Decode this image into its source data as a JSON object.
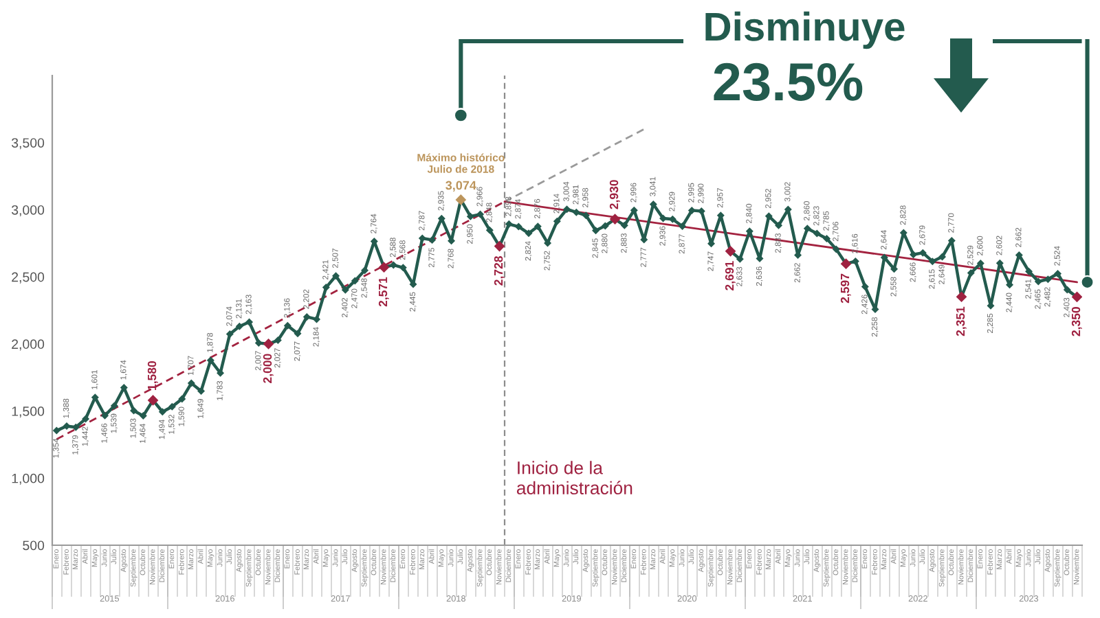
{
  "chart_data": {
    "type": "line",
    "title": "Disminuye",
    "subtitle": "23.5%",
    "x": [
      "2015-01-15",
      "2015-02-15",
      "2015-03-15",
      "2015-04-15",
      "2015-05-15",
      "2015-06-15",
      "2015-07-15",
      "2015-08-15",
      "2015-09-15",
      "2015-10-15",
      "2015-11-15",
      "2015-12-15",
      "2016-01-15",
      "2016-02-15",
      "2016-03-15",
      "2016-04-15",
      "2016-05-15",
      "2016-06-15",
      "2016-07-15",
      "2016-08-15",
      "2016-09-15",
      "2016-10-15",
      "2016-11-15",
      "2016-12-15",
      "2017-01-15",
      "2017-02-15",
      "2017-03-15",
      "2017-04-15",
      "2017-05-15",
      "2017-06-15",
      "2017-07-15",
      "2017-08-15",
      "2017-09-15",
      "2017-10-15",
      "2017-11-15",
      "2017-12-15",
      "2018-01-15",
      "2018-02-15",
      "2018-03-15",
      "2018-04-15",
      "2018-05-15",
      "2018-06-15",
      "2018-07-15",
      "2018-08-15",
      "2018-09-15",
      "2018-10-15",
      "2018-11-15",
      "2018-12-15",
      "2019-01-15",
      "2019-02-15",
      "2019-03-15",
      "2019-04-15",
      "2019-05-15",
      "2019-06-15",
      "2019-07-15",
      "2019-08-15",
      "2019-09-15",
      "2019-10-15",
      "2019-11-15",
      "2019-12-15",
      "2020-01-15",
      "2020-02-15",
      "2020-03-15",
      "2020-04-15",
      "2020-05-15",
      "2020-06-15",
      "2020-07-15",
      "2020-08-15",
      "2020-09-15",
      "2020-10-15",
      "2020-11-15",
      "2020-12-15",
      "2021-01-15",
      "2021-02-15",
      "2021-03-15",
      "2021-04-15",
      "2021-05-15",
      "2021-06-15",
      "2021-07-15",
      "2021-08-15",
      "2021-09-15",
      "2021-10-15",
      "2021-11-15",
      "2021-12-15",
      "2022-01-15",
      "2022-02-15",
      "2022-03-15",
      "2022-04-15",
      "2022-05-15",
      "2022-06-15",
      "2022-07-15",
      "2022-08-15",
      "2022-09-15",
      "2022-10-15",
      "2022-11-15",
      "2022-12-15",
      "2023-01-15",
      "2023-02-15",
      "2023-03-15",
      "2023-04-15",
      "2023-05-15",
      "2023-06-15",
      "2023-07-15",
      "2023-08-15",
      "2023-09-15",
      "2023-10-15",
      "2023-11-15"
    ],
    "xlim": [
      "2015-01-01",
      "2023-12-01"
    ],
    "xticks": [
      {
        "value": "2015-01-15",
        "label": "Enero"
      },
      {
        "value": "2015-02-15",
        "label": "Febrero"
      },
      {
        "value": "2015-03-15",
        "label": "Marzo"
      },
      {
        "value": "2015-04-15",
        "label": "Abril"
      },
      {
        "value": "2015-05-15",
        "label": "Mayo"
      },
      {
        "value": "2015-06-15",
        "label": "Junio"
      },
      {
        "value": "2015-07-15",
        "label": "Julio"
      },
      {
        "value": "2015-08-15",
        "label": "Agosto"
      },
      {
        "value": "2015-09-15",
        "label": "Septiembre"
      },
      {
        "value": "2015-10-15",
        "label": "Octubre"
      },
      {
        "value": "2015-11-15",
        "label": "Noviembre"
      },
      {
        "value": "2015-12-15",
        "label": "Diciembre"
      },
      {
        "value": "2016-01-15",
        "label": "Enero"
      },
      {
        "value": "2016-02-15",
        "label": "Febrero"
      },
      {
        "value": "2016-03-15",
        "label": "Marzo"
      },
      {
        "value": "2016-04-15",
        "label": "Abril"
      },
      {
        "value": "2016-05-15",
        "label": "Mayo"
      },
      {
        "value": "2016-06-15",
        "label": "Junio"
      },
      {
        "value": "2016-07-15",
        "label": "Julio"
      },
      {
        "value": "2016-08-15",
        "label": "Agosto"
      },
      {
        "value": "2016-09-15",
        "label": "Septiembre"
      },
      {
        "value": "2016-10-15",
        "label": "Octubre"
      },
      {
        "value": "2016-11-15",
        "label": "Noviembre"
      },
      {
        "value": "2016-12-15",
        "label": "Diciembre"
      },
      {
        "value": "2017-01-15",
        "label": "Enero"
      },
      {
        "value": "2017-02-15",
        "label": "Febrero"
      },
      {
        "value": "2017-03-15",
        "label": "Marzo"
      },
      {
        "value": "2017-04-15",
        "label": "Abril"
      },
      {
        "value": "2017-05-15",
        "label": "Mayo"
      },
      {
        "value": "2017-06-15",
        "label": "Junio"
      },
      {
        "value": "2017-07-15",
        "label": "Julio"
      },
      {
        "value": "2017-08-15",
        "label": "Agosto"
      },
      {
        "value": "2017-09-15",
        "label": "Septiembre"
      },
      {
        "value": "2017-10-15",
        "label": "Octubre"
      },
      {
        "value": "2017-11-15",
        "label": "Noviembre"
      },
      {
        "value": "2017-12-15",
        "label": "Diciembre"
      },
      {
        "value": "2018-01-15",
        "label": "Enero"
      },
      {
        "value": "2018-02-15",
        "label": "Febrero"
      },
      {
        "value": "2018-03-15",
        "label": "Marzo"
      },
      {
        "value": "2018-04-15",
        "label": "Abril"
      },
      {
        "value": "2018-05-15",
        "label": "Mayo"
      },
      {
        "value": "2018-06-15",
        "label": "Junio"
      },
      {
        "value": "2018-07-15",
        "label": "Julio"
      },
      {
        "value": "2018-08-15",
        "label": "Agosto"
      },
      {
        "value": "2018-09-15",
        "label": "Septiembre"
      },
      {
        "value": "2018-10-15",
        "label": "Octubre"
      },
      {
        "value": "2018-11-15",
        "label": "Noviembre"
      },
      {
        "value": "2018-12-15",
        "label": "Diciembre"
      },
      {
        "value": "2019-01-15",
        "label": "Enero"
      },
      {
        "value": "2019-02-15",
        "label": "Febrero"
      },
      {
        "value": "2019-03-15",
        "label": "Marzo"
      },
      {
        "value": "2019-04-15",
        "label": "Abril"
      },
      {
        "value": "2019-05-15",
        "label": "Mayo"
      },
      {
        "value": "2019-06-15",
        "label": "Junio"
      },
      {
        "value": "2019-07-15",
        "label": "Julio"
      },
      {
        "value": "2019-08-15",
        "label": "Agosto"
      },
      {
        "value": "2019-09-15",
        "label": "Septiembre"
      },
      {
        "value": "2019-10-15",
        "label": "Octubre"
      },
      {
        "value": "2019-11-15",
        "label": "Noviembre"
      },
      {
        "value": "2019-12-15",
        "label": "Diciembre"
      },
      {
        "value": "2020-01-15",
        "label": "Enero"
      },
      {
        "value": "2020-02-15",
        "label": "Febrero"
      },
      {
        "value": "2020-03-15",
        "label": "Marzo"
      },
      {
        "value": "2020-04-15",
        "label": "Abril"
      },
      {
        "value": "2020-05-15",
        "label": "Mayo"
      },
      {
        "value": "2020-06-15",
        "label": "Junio"
      },
      {
        "value": "2020-07-15",
        "label": "Julio"
      },
      {
        "value": "2020-08-15",
        "label": "Agosto"
      },
      {
        "value": "2020-09-15",
        "label": "Septiembre"
      },
      {
        "value": "2020-10-15",
        "label": "Octubre"
      },
      {
        "value": "2020-11-15",
        "label": "Noviembre"
      },
      {
        "value": "2020-12-15",
        "label": "Diciembre"
      },
      {
        "value": "2021-01-15",
        "label": "Enero"
      },
      {
        "value": "2021-02-15",
        "label": "Febrero"
      },
      {
        "value": "2021-03-15",
        "label": "Marzo"
      },
      {
        "value": "2021-04-15",
        "label": "Abril"
      },
      {
        "value": "2021-05-15",
        "label": "Mayo"
      },
      {
        "value": "2021-06-15",
        "label": "Junio"
      },
      {
        "value": "2021-07-15",
        "label": "Julio"
      },
      {
        "value": "2021-08-15",
        "label": "Agosto"
      },
      {
        "value": "2021-09-15",
        "label": "Septiembre"
      },
      {
        "value": "2021-10-15",
        "label": "Octubre"
      },
      {
        "value": "2021-11-15",
        "label": "Noviembre"
      },
      {
        "value": "2021-12-15",
        "label": "Diciembre"
      },
      {
        "value": "2022-01-15",
        "label": "Enero"
      },
      {
        "value": "2022-02-15",
        "label": "Febrero"
      },
      {
        "value": "2022-03-15",
        "label": "Marzo"
      },
      {
        "value": "2022-04-15",
        "label": "Abril"
      },
      {
        "value": "2022-05-15",
        "label": "Mayo"
      },
      {
        "value": "2022-06-15",
        "label": "Junio"
      },
      {
        "value": "2022-07-15",
        "label": "Julio"
      },
      {
        "value": "2022-08-15",
        "label": "Agosto"
      },
      {
        "value": "2022-09-15",
        "label": "Septiembre"
      },
      {
        "value": "2022-10-15",
        "label": "Octubre"
      },
      {
        "value": "2022-11-15",
        "label": "Noviembre"
      },
      {
        "value": "2022-12-15",
        "label": "Diciembre"
      },
      {
        "value": "2023-01-15",
        "label": "Enero"
      },
      {
        "value": "2023-02-15",
        "label": "Febrero"
      },
      {
        "value": "2023-03-15",
        "label": "Marzo"
      },
      {
        "value": "2023-04-15",
        "label": "Abril"
      },
      {
        "value": "2023-05-15",
        "label": "Mayo"
      },
      {
        "value": "2023-06-15",
        "label": "Junio"
      },
      {
        "value": "2023-07-15",
        "label": "Julio"
      },
      {
        "value": "2023-08-15",
        "label": "Agosto"
      },
      {
        "value": "2023-09-15",
        "label": "Septiembre"
      },
      {
        "value": "2023-10-15",
        "label": "Octubre"
      },
      {
        "value": "2023-11-15",
        "label": "Noviembre"
      }
    ],
    "ylim": [
      500,
      4000
    ],
    "yticks": [
      500,
      {
        "value": 1000,
        "label": "1,000"
      },
      {
        "value": 1500,
        "label": "1,500"
      },
      {
        "value": 2000,
        "label": "2,000"
      },
      {
        "value": 2500,
        "label": "2,500"
      },
      {
        "value": 3000,
        "label": "3,000"
      },
      {
        "value": 3500,
        "label": "3,500"
      }
    ],
    "marker": "diamond",
    "series": [
      {
        "color": "#235b4e",
        "values": [
          1354,
          1388,
          1379,
          1442,
          1601,
          1466,
          1539,
          1674,
          1503,
          1464,
          1580,
          1494,
          1532,
          1590,
          1707,
          1649,
          1878,
          1783,
          2074,
          2131,
          2163,
          2007,
          2000,
          2027,
          2136,
          2077,
          2202,
          2184,
          2421,
          2507,
          2402,
          2470,
          2548,
          2764,
          2571,
          2588,
          2568,
          2445,
          2787,
          2775,
          2935,
          2768,
          3074,
          2950,
          2966,
          2848,
          2728,
          2893,
          2874,
          2824,
          2876,
          2752,
          2914,
          3004,
          2981,
          2958,
          2845,
          2880,
          2930,
          2883,
          2996,
          2777,
          3041,
          2936,
          2929,
          2877,
          2995,
          2990,
          2747,
          2957,
          2691,
          2633,
          2840,
          2636,
          2952,
          2883,
          3002,
          2662,
          2860,
          2823,
          2785,
          2706,
          2597,
          2616,
          2426,
          2258,
          2644,
          2558,
          2828,
          2666,
          2679,
          2615,
          2649,
          2770,
          2351,
          2529,
          2600,
          2285,
          2602,
          2440,
          2662,
          2541,
          2465,
          2482,
          2524,
          2403,
          2350
        ],
        "value_labels": [
          "1,354",
          "1,388",
          "1,379",
          "1,442",
          "1,601",
          "1,466",
          "1,539",
          "1,674",
          "1,503",
          "1,464",
          "1,580",
          "1,494",
          "1,532",
          "1,590",
          "1,707",
          "1,649",
          "1,878",
          "1,783",
          "2,074",
          "2,131",
          "2,163",
          "2,007",
          "2,000",
          "2,027",
          "2,136",
          "2,077",
          "2,202",
          "2,184",
          "2,421",
          "2,507",
          "2,402",
          "2,470",
          "2,548",
          "2,764",
          "2,571",
          "2,588",
          "2,568",
          "2,445",
          "2,787",
          "2,775",
          "2,935",
          "2,768",
          "3,074",
          "2,950",
          "2,966",
          "2,848",
          "2,728",
          "2,893",
          "2,874",
          "2,824",
          "2,876",
          "2,752",
          "2,914",
          "3,004",
          "2,981",
          "2,958",
          "2,845",
          "2,880",
          "2,930",
          "2,883",
          "2,996",
          "2,777",
          "3,041",
          "2,936",
          "2,929",
          "2,877",
          "2,995",
          "2,990",
          "2,747",
          "2,957",
          "2,691",
          "2,633",
          "2,840",
          "2,636",
          "2,952",
          "2,883",
          "3,002",
          "2,662",
          "2,860",
          "2,823",
          "2,785",
          "2,706",
          "2,597",
          "2,616",
          "2,426",
          "2,258",
          "2,644",
          "2,558",
          "2,828",
          "2,666",
          "2,679",
          "2,615",
          "2,649",
          "2,770",
          "2,351",
          "2,529",
          "2,600",
          "2,285",
          "2,602",
          "2,440",
          "2,662",
          "2,541",
          "2,465",
          "2,482",
          "2,524",
          "2,403",
          "2,350"
        ],
        "colors": [
          "#235b4e",
          "#235b4e",
          "#235b4e",
          "#235b4e",
          "#235b4e",
          "#235b4e",
          "#235b4e",
          "#235b4e",
          "#235b4e",
          "#235b4e",
          "#9f2241",
          "#235b4e",
          "#235b4e",
          "#235b4e",
          "#235b4e",
          "#235b4e",
          "#235b4e",
          "#235b4e",
          "#235b4e",
          "#235b4e",
          "#235b4e",
          "#235b4e",
          "#9f2241",
          "#235b4e",
          "#235b4e",
          "#235b4e",
          "#235b4e",
          "#235b4e",
          "#235b4e",
          "#235b4e",
          "#235b4e",
          "#235b4e",
          "#235b4e",
          "#235b4e",
          "#9f2241",
          "#235b4e",
          "#235b4e",
          "#235b4e",
          "#235b4e",
          "#235b4e",
          "#235b4e",
          "#235b4e",
          "#bc955c",
          "#235b4e",
          "#235b4e",
          "#235b4e",
          "#9f2241",
          "#235b4e",
          "#235b4e",
          "#235b4e",
          "#235b4e",
          "#235b4e",
          "#235b4e",
          "#235b4e",
          "#235b4e",
          "#235b4e",
          "#235b4e",
          "#235b4e",
          "#9f2241",
          "#235b4e",
          "#235b4e",
          "#235b4e",
          "#235b4e",
          "#235b4e",
          "#235b4e",
          "#235b4e",
          "#235b4e",
          "#235b4e",
          "#235b4e",
          "#235b4e",
          "#9f2241",
          "#235b4e",
          "#235b4e",
          "#235b4e",
          "#235b4e",
          "#235b4e",
          "#235b4e",
          "#235b4e",
          "#235b4e",
          "#235b4e",
          "#235b4e",
          "#235b4e",
          "#9f2241",
          "#235b4e",
          "#235b4e",
          "#235b4e",
          "#235b4e",
          "#235b4e",
          "#235b4e",
          "#235b4e",
          "#235b4e",
          "#235b4e",
          "#235b4e",
          "#235b4e",
          "#9f2241",
          "#235b4e",
          "#235b4e",
          "#235b4e",
          "#235b4e",
          "#235b4e",
          "#235b4e",
          "#235b4e",
          "#235b4e",
          "#235b4e",
          "#235b4e",
          "#235b4e",
          "#9f2241"
        ]
      },
      {
        "color": "#a3223f",
        "line_style": "dashed",
        "marker": "none",
        "x": [
          "2015-01-15",
          "2018-12-01"
        ],
        "values": [
          1290,
          3060
        ]
      },
      {
        "color": "#9a9a9a",
        "line_style": "dashed",
        "marker": "none",
        "x": [
          "2018-12-01",
          "2020-02-15"
        ],
        "values": [
          3060,
          3600
        ]
      },
      {
        "color": "#a3223f",
        "line_style": "solid",
        "marker": "none",
        "x": [
          "2018-12-01",
          "2023-11-15"
        ],
        "values": [
          3060,
          2460
        ]
      }
    ],
    "ref_lines": [
      {
        "axis": "x",
        "value": "2018-12-01",
        "label": "Inicio de la\nadministración",
        "color": "#8c8c8c",
        "line_style": "dashed"
      }
    ],
    "annotations": [
      "2015",
      "2016",
      "2017",
      "2018",
      "2019",
      "2020",
      "2021",
      "2022",
      "2023",
      {
        "text": "Máximo histórico\nJulio de 2018",
        "x": "2018-07-15",
        "y": 3074
      }
    ]
  }
}
